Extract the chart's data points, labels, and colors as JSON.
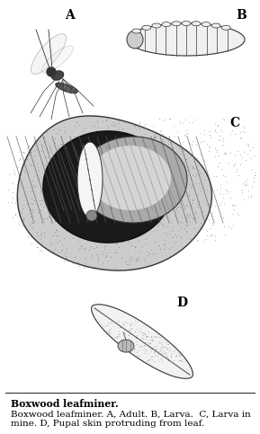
{
  "caption_bold": "Boxwood leafminer.",
  "caption_normal": " A, Adult. B, Larva.  C, Larva in mine. D, Pupal skin protruding from leaf.",
  "background_color": "#ffffff",
  "fig_width": 2.89,
  "fig_height": 4.83,
  "dpi": 100,
  "label_A": "A",
  "label_B": "B",
  "label_C": "C",
  "label_D": "D",
  "label_fontsize": 10,
  "caption_fontsize": 7.8
}
